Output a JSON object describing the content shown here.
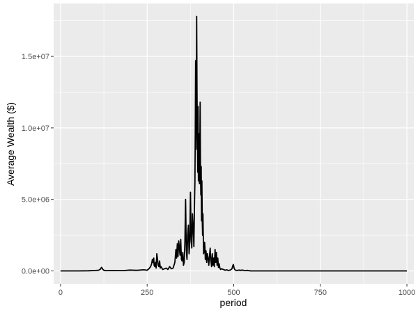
{
  "chart_data": {
    "type": "line",
    "xlabel": "period",
    "ylabel": "Average Wealth ($)",
    "xlim": [
      -20,
      1020
    ],
    "ylim": [
      -900000,
      18700000
    ],
    "x_ticks": [
      0,
      250,
      500,
      750,
      1000
    ],
    "x_tick_labels": [
      "0",
      "250",
      "500",
      "750",
      "1000"
    ],
    "y_ticks": [
      0,
      5000000,
      10000000,
      15000000
    ],
    "y_tick_labels": [
      "0.0e+00",
      "5.0e+06",
      "1.0e+07",
      "1.5e+07"
    ],
    "grid": true,
    "colors": {
      "panel": "#ebebeb",
      "grid": "#ffffff",
      "line": "#000000"
    },
    "series": [
      {
        "x": [
          0,
          20,
          50,
          80,
          100,
          110,
          115,
          118,
          120,
          122,
          125,
          130,
          150,
          180,
          200,
          220,
          240,
          250,
          255,
          260,
          263,
          265,
          267,
          269,
          270,
          272,
          274,
          276,
          278,
          280,
          282,
          284,
          286,
          288,
          290,
          295,
          300,
          305,
          310,
          315,
          320,
          325,
          330,
          333,
          335,
          337,
          339,
          341,
          343,
          345,
          347,
          349,
          351,
          353,
          355,
          357,
          359,
          361,
          363,
          365,
          367,
          369,
          371,
          373,
          375,
          377,
          379,
          381,
          383,
          385,
          387,
          388,
          389,
          390,
          391,
          392,
          393,
          394,
          395,
          396,
          397,
          398,
          399,
          400,
          401,
          402,
          403,
          404,
          405,
          406,
          407,
          408,
          409,
          410,
          411,
          412,
          413,
          414,
          415,
          416,
          417,
          418,
          420,
          422,
          424,
          426,
          428,
          430,
          432,
          434,
          436,
          438,
          440,
          442,
          444,
          446,
          448,
          450,
          452,
          454,
          456,
          458,
          460,
          462,
          465,
          470,
          475,
          480,
          485,
          490,
          495,
          497,
          499,
          501,
          503,
          505,
          510,
          515,
          520,
          525,
          530,
          535,
          540,
          545,
          550,
          600,
          650,
          700,
          750,
          800,
          850,
          900,
          950,
          1000
        ],
        "values": [
          0,
          0,
          0,
          10000,
          30000,
          50000,
          120000,
          250000,
          200000,
          100000,
          50000,
          20000,
          30000,
          20000,
          60000,
          40000,
          80000,
          50000,
          150000,
          300000,
          500000,
          800000,
          600000,
          900000,
          400000,
          300000,
          600000,
          200000,
          1200000,
          800000,
          400000,
          300000,
          700000,
          200000,
          300000,
          100000,
          150000,
          200000,
          100000,
          300000,
          150000,
          200000,
          600000,
          1500000,
          900000,
          1900000,
          1000000,
          2100000,
          1600000,
          1100000,
          2200000,
          800000,
          700000,
          1300000,
          400000,
          600000,
          2000000,
          5000000,
          1500000,
          800000,
          2500000,
          3200000,
          1200000,
          2000000,
          5500000,
          2200000,
          1600000,
          4000000,
          3000000,
          1700000,
          5000000,
          6200000,
          9800000,
          14700000,
          8500000,
          10600000,
          17800000,
          12500000,
          9800000,
          6900000,
          11500000,
          6300000,
          7900000,
          9600000,
          6100000,
          8400000,
          11800000,
          6800000,
          5300000,
          7300000,
          3500000,
          6300000,
          3600000,
          2500000,
          4000000,
          2400000,
          1200000,
          1900000,
          1300000,
          2000000,
          1600000,
          800000,
          1400000,
          600000,
          1200000,
          900000,
          400000,
          1000000,
          1600000,
          700000,
          300000,
          1200000,
          400000,
          900000,
          300000,
          1500000,
          600000,
          1300000,
          400000,
          900000,
          250000,
          500000,
          200000,
          100000,
          150000,
          100000,
          50000,
          80000,
          30000,
          60000,
          150000,
          350000,
          450000,
          200000,
          100000,
          50000,
          30000,
          60000,
          40000,
          60000,
          30000,
          20000,
          40000,
          10000,
          0,
          0,
          0,
          0,
          0,
          0,
          0,
          0,
          0,
          0
        ]
      }
    ]
  }
}
